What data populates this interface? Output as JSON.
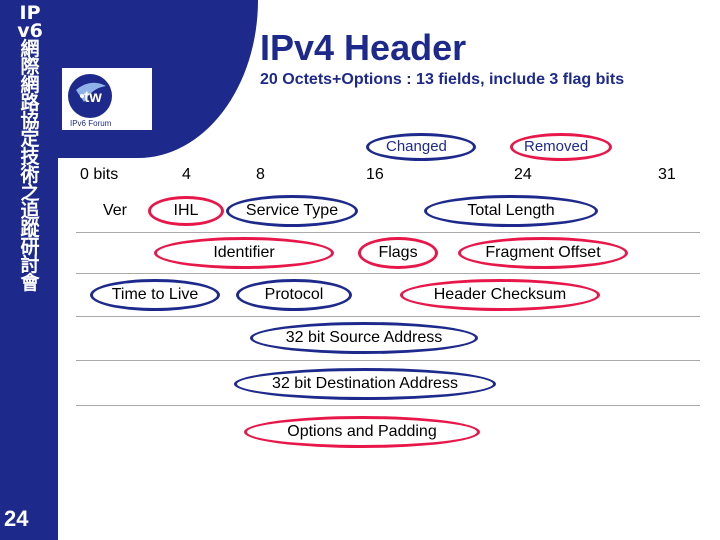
{
  "sidebar": {
    "vertical_title": "IPv6網際網路協定技術之追蹤研討會",
    "slide_number": "24"
  },
  "header": {
    "title": "IPv4 Header",
    "subtitle": "20 Octets+Options : 13 fields, include 3 flag bits",
    "logo_text": "IPv6 Forum"
  },
  "legend": {
    "changed": "Changed",
    "removed": "Removed"
  },
  "bit_positions": [
    "0 bits",
    "4",
    "8",
    "16",
    "24",
    "31"
  ],
  "fields": {
    "ver": "Ver",
    "ihl": "IHL",
    "service_type": "Service Type",
    "total_length": "Total Length",
    "identifier": "Identifier",
    "flags": "Flags",
    "fragment_offset": "Fragment Offset",
    "time_to_live": "Time to Live",
    "protocol": "Protocol",
    "header_checksum": "Header Checksum",
    "source_address": "32 bit Source Address",
    "destination_address": "32 bit Destination Address",
    "options_padding": "Options and Padding"
  },
  "colors": {
    "removed": "#e8174a",
    "changed": "#1d2a8c",
    "brand": "#1d2a8c"
  }
}
